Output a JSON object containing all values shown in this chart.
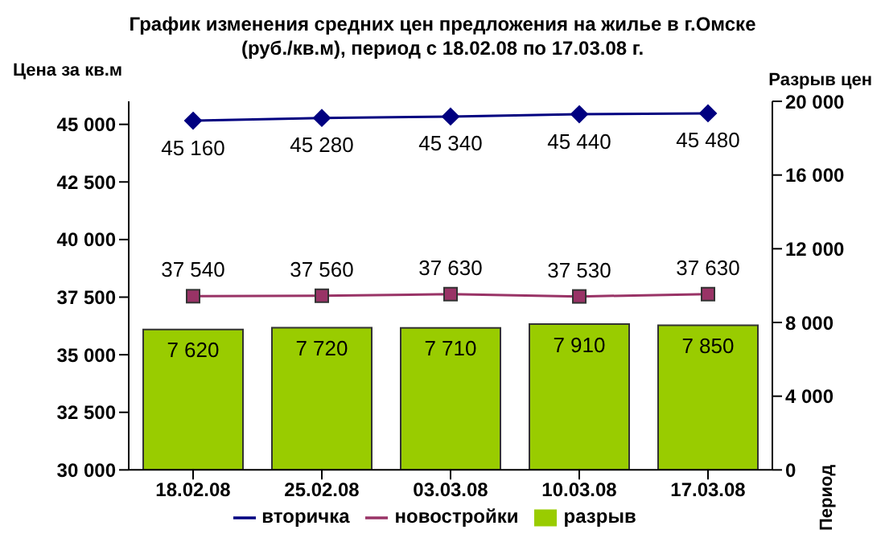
{
  "chart_data": {
    "type": "bar",
    "title": "График изменения средних цен предложения на жилье в г.Омске",
    "subtitle": "(руб./кв.м), период с 18.02.08 по 17.03.08 г.",
    "ylabel": "Цена за кв.м",
    "y2label": "Разрыв цен",
    "annotations": [
      "Период"
    ],
    "categories": [
      "18.02.08",
      "25.02.08",
      "03.03.08",
      "10.03.08",
      "17.03.08"
    ],
    "series": [
      {
        "name": "разрыв",
        "axis": "y2",
        "color": "#99cc00",
        "values": [
          7620,
          7720,
          7710,
          7910,
          7850
        ]
      },
      {
        "name": "вторичка",
        "type": "line",
        "axis": "y",
        "color": "#000080",
        "marker": "diamond",
        "values": [
          45160,
          45280,
          45340,
          45440,
          45480
        ]
      },
      {
        "name": "новостройки",
        "type": "line",
        "axis": "y",
        "color": "#993366",
        "marker": "square",
        "values": [
          37540,
          37560,
          37630,
          37530,
          37630
        ]
      }
    ],
    "ylim": [
      30000,
      46000
    ],
    "yticks": [
      30000,
      32500,
      35000,
      37500,
      40000,
      42500,
      45000
    ],
    "y2lim": [
      0,
      20000
    ],
    "y2ticks": [
      0,
      4000,
      8000,
      12000,
      16000,
      20000
    ],
    "data_labels": true,
    "grid": false,
    "legend": "bottom"
  }
}
